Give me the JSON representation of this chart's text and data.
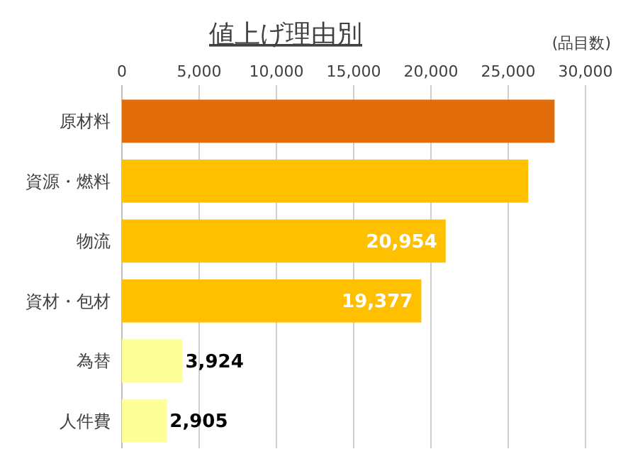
{
  "chart_data": {
    "type": "bar",
    "orientation": "horizontal",
    "title": "値上げ理由別",
    "subtitle": "(品目数)",
    "categories": [
      "原材料",
      "資源・燃料",
      "物流",
      "資材・包材",
      "為替",
      "人件費"
    ],
    "values": [
      28000,
      26300,
      20954,
      19377,
      3924,
      2905
    ],
    "colors": [
      "#e36c0a",
      "#ffc000",
      "#ffc000",
      "#ffc000",
      "#ffff99",
      "#ffff99"
    ],
    "value_labels": [
      null,
      null,
      "20,954",
      "19,377",
      "3,924",
      "2,905"
    ],
    "xlim": [
      0,
      30000
    ],
    "xticks": [
      0,
      {
        "value": 5000,
        "label": "5,000"
      },
      {
        "value": 10000,
        "label": "10,000"
      },
      {
        "value": 15000,
        "label": "15,000"
      },
      {
        "value": 20000,
        "label": "20,000"
      },
      {
        "value": 25000,
        "label": "25,000"
      },
      {
        "value": 30000,
        "label": "30,000"
      }
    ],
    "grid": "x"
  }
}
